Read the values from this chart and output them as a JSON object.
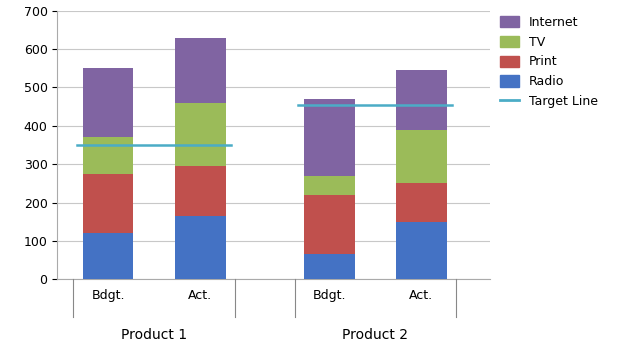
{
  "categories": [
    "Bdgt.",
    "Act.",
    "Bdgt.",
    "Act."
  ],
  "group_labels": [
    "Product 1",
    "Product 2"
  ],
  "radio": [
    120,
    165,
    65,
    150
  ],
  "print": [
    155,
    130,
    155,
    100
  ],
  "tv": [
    95,
    165,
    50,
    140
  ],
  "internet": [
    180,
    170,
    200,
    155
  ],
  "target_lines": [
    {
      "y": 350
    },
    {
      "y": 455
    }
  ],
  "colors": {
    "radio": "#4472C4",
    "print": "#C0504D",
    "tv": "#9BBB59",
    "internet": "#8064A2"
  },
  "target_color": "#4BACC6",
  "ylim": [
    0,
    700
  ],
  "yticks": [
    0,
    100,
    200,
    300,
    400,
    500,
    600,
    700
  ],
  "bar_width": 0.55,
  "background_color": "#FFFFFF",
  "grid_color": "#C8C8C8"
}
